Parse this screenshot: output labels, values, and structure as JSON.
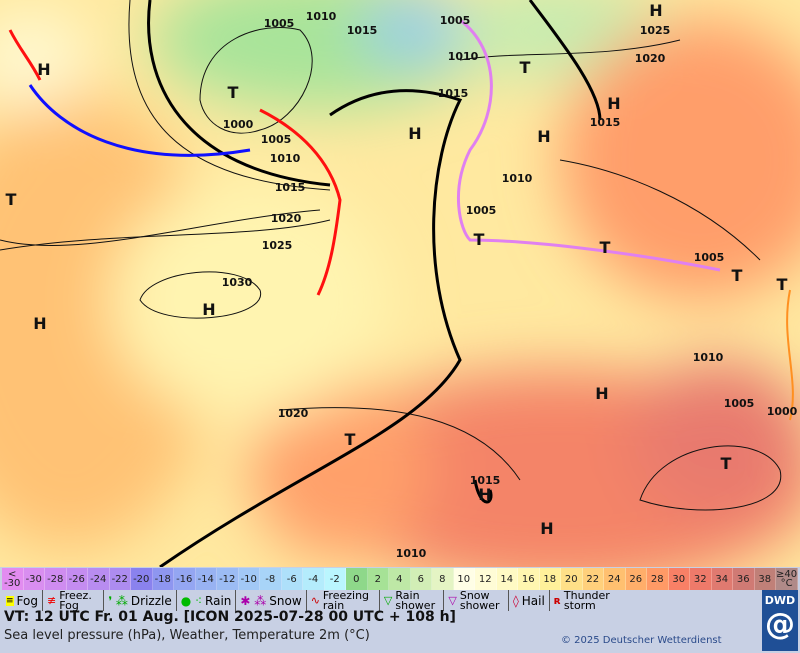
{
  "map": {
    "pressure_labels": [
      "1005",
      "1010",
      "1015",
      "1005",
      "1025",
      "1010",
      "1020",
      "1015",
      "1000",
      "1005",
      "1010",
      "1015",
      "1020",
      "1025",
      "1030",
      "1015",
      "1010",
      "1005",
      "1005",
      "1010",
      "1005",
      "1000",
      "1020",
      "1015",
      "1010"
    ],
    "high_label": "H",
    "low_label": "T"
  },
  "scale": {
    "labels": [
      "<\n-30",
      "-30",
      "-28",
      "-26",
      "-24",
      "-22",
      "-20",
      "-18",
      "-16",
      "-14",
      "-12",
      "-10",
      "-8",
      "-6",
      "-4",
      "-2",
      "0",
      "2",
      "4",
      "6",
      "8",
      "10",
      "12",
      "14",
      "16",
      "18",
      "20",
      "22",
      "24",
      "26",
      "28",
      "30",
      "32",
      "34",
      "36",
      "38",
      "≥40\n°C"
    ],
    "colors": [
      "#e28cf0",
      "#d98ef0",
      "#cf8cf0",
      "#c48cf0",
      "#b88cf0",
      "#ad8cf0",
      "#8a82ee",
      "#8e96f0",
      "#94a6f2",
      "#98b2f2",
      "#9cbcf4",
      "#a2c8f6",
      "#a8d4f8",
      "#aee0fa",
      "#b4ecfc",
      "#baf6fe",
      "#8ed88a",
      "#a6e296",
      "#bee8a6",
      "#d2eeb6",
      "#e4f4c4",
      "#fffee6",
      "#fffcd6",
      "#fffac4",
      "#fff6b0",
      "#fff09a",
      "#ffe088",
      "#ffd07c",
      "#ffc070",
      "#ffae6a",
      "#ff9a66",
      "#f88066",
      "#ee7a6a",
      "#e07a70",
      "#d07a74",
      "#c08078",
      "#b08a88"
    ]
  },
  "legend": [
    {
      "label": "Fog"
    },
    {
      "label": "Freez. Fog"
    },
    {
      "label": "Drizzle"
    },
    {
      "label": "Rain"
    },
    {
      "label": "Snow"
    },
    {
      "label": "Freezing rain"
    },
    {
      "label": "Rain shower"
    },
    {
      "label": "Snow shower"
    },
    {
      "label": "Hail"
    },
    {
      "label": "Thunder storm"
    }
  ],
  "vt": "VT: 12 UTC Fr.  01 Aug. [ICON 2025-07-28  00 UTC + 108 h]",
  "subtitle": "Sea level pressure (hPa), Weather, Temperature 2m (°C)",
  "copyright": "© 2025 Deutscher Wetterdienst",
  "logo": "DWD"
}
